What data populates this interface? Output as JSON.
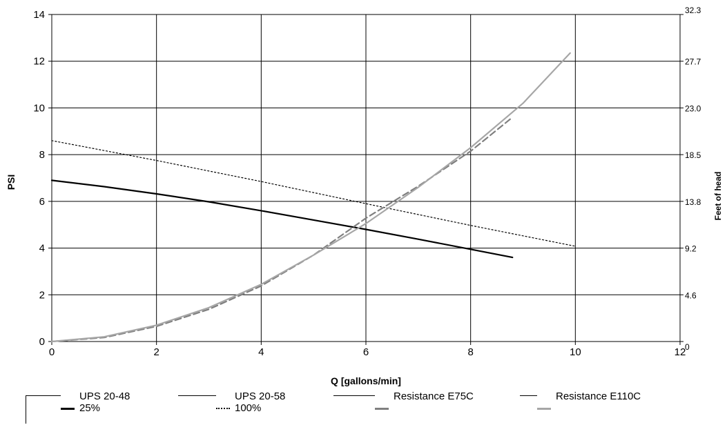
{
  "chart_data": {
    "type": "line",
    "xlabel": "Q [gallons/min]",
    "ylabel": "PSI",
    "y2label": "Feet of head",
    "xlim": [
      0,
      12
    ],
    "ylim": [
      0,
      14
    ],
    "x_ticks": [
      "0",
      "2",
      "4",
      "6",
      "8",
      "10",
      "12"
    ],
    "y_ticks": [
      "0",
      "2",
      "4",
      "6",
      "8",
      "10",
      "12",
      "14"
    ],
    "y2_ticks": [
      "0",
      "4.6",
      "9.2",
      "13.8",
      "18.5",
      "23.0",
      "27.7",
      "32.3"
    ],
    "grid": true,
    "legend_position": "bottom",
    "series": [
      {
        "name": "UPS 20-48\n25%",
        "color": "#000000",
        "style": "solid",
        "x": [
          0,
          1,
          2,
          3,
          4,
          5,
          6,
          7,
          8,
          8.8
        ],
        "y": [
          6.9,
          6.63,
          6.32,
          5.98,
          5.6,
          5.2,
          4.8,
          4.38,
          3.95,
          3.6
        ]
      },
      {
        "name": "UPS 20-58\n100%",
        "color": "#000000",
        "style": "dotted",
        "x": [
          0,
          2,
          4,
          6,
          8,
          10
        ],
        "y": [
          8.6,
          7.75,
          6.85,
          5.9,
          4.97,
          4.08
        ]
      },
      {
        "name": "Resistance E75C",
        "color": "#7f7f7f",
        "style": "dashed",
        "x": [
          0,
          1,
          2,
          3,
          4,
          5,
          6,
          7,
          8,
          8.8
        ],
        "y": [
          0,
          0.17,
          0.65,
          1.38,
          2.38,
          3.7,
          5.28,
          6.65,
          8.15,
          9.6
        ]
      },
      {
        "name": "Resistance E110C",
        "color": "#a6a6a6",
        "style": "solid",
        "x": [
          0,
          1,
          2,
          3,
          4,
          5,
          6,
          7,
          8,
          9,
          9.9
        ],
        "y": [
          0,
          0.2,
          0.7,
          1.45,
          2.45,
          3.7,
          5.05,
          6.6,
          8.3,
          10.2,
          12.35
        ]
      }
    ]
  }
}
